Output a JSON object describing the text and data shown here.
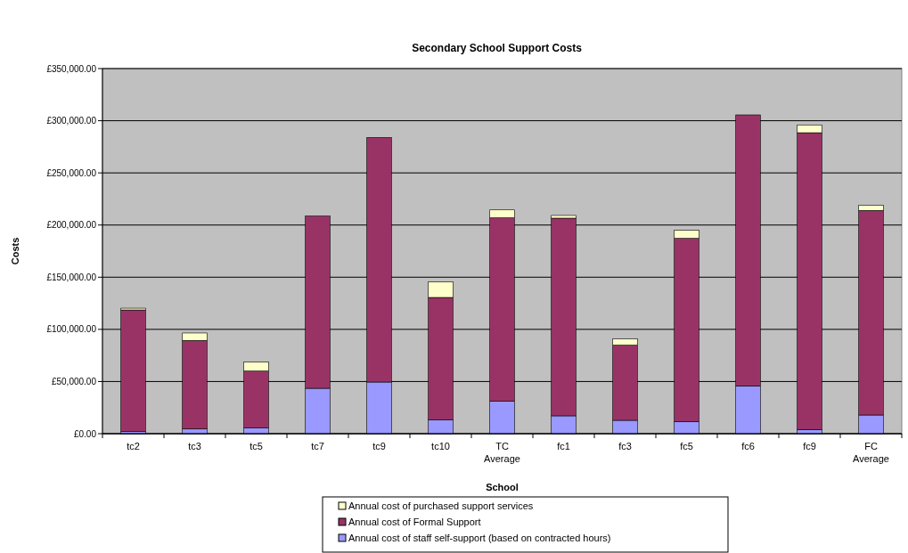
{
  "chart_data": {
    "type": "bar",
    "stacked": true,
    "title": "Secondary School Support Costs",
    "xlabel": "School",
    "ylabel": "Costs",
    "categories": [
      "tc2",
      "tc3",
      "tc5",
      "tc7",
      "tc9",
      "tc10",
      "TC Average",
      "fc1",
      "fc3",
      "fc5",
      "fc6",
      "fc9",
      "FC Average"
    ],
    "series": [
      {
        "name": "Annual cost of staff self-support (based on contracted hours)",
        "color": "#9999ff",
        "values": [
          2000,
          4500,
          5400,
          43500,
          49500,
          13100,
          31000,
          17100,
          12800,
          11700,
          45800,
          4000,
          17900
        ]
      },
      {
        "name": "Annual cost of Formal Support",
        "color": "#993366",
        "values": [
          116600,
          84900,
          54600,
          165100,
          234500,
          117500,
          175900,
          189500,
          72000,
          175500,
          259800,
          284500,
          196100
        ]
      },
      {
        "name": "Annual cost of purchased support services",
        "color": "#ffffcc",
        "values": [
          1700,
          7100,
          8600,
          0,
          0,
          14800,
          7600,
          2600,
          6000,
          7700,
          0,
          7500,
          5000
        ]
      }
    ],
    "ylim": [
      0,
      350000
    ],
    "yticks": [
      {
        "value": 0,
        "label": "£0.00"
      },
      {
        "value": 50000,
        "label": "£50,000.00"
      },
      {
        "value": 100000,
        "label": "£100,000.00"
      },
      {
        "value": 150000,
        "label": "£150,000.00"
      },
      {
        "value": 200000,
        "label": "£200,000.00"
      },
      {
        "value": 250000,
        "label": "£250,000.00"
      },
      {
        "value": 300000,
        "label": "£300,000.00"
      },
      {
        "value": 350000,
        "label": "£350,000.00"
      }
    ],
    "grid": "y",
    "legend": "bottom"
  }
}
